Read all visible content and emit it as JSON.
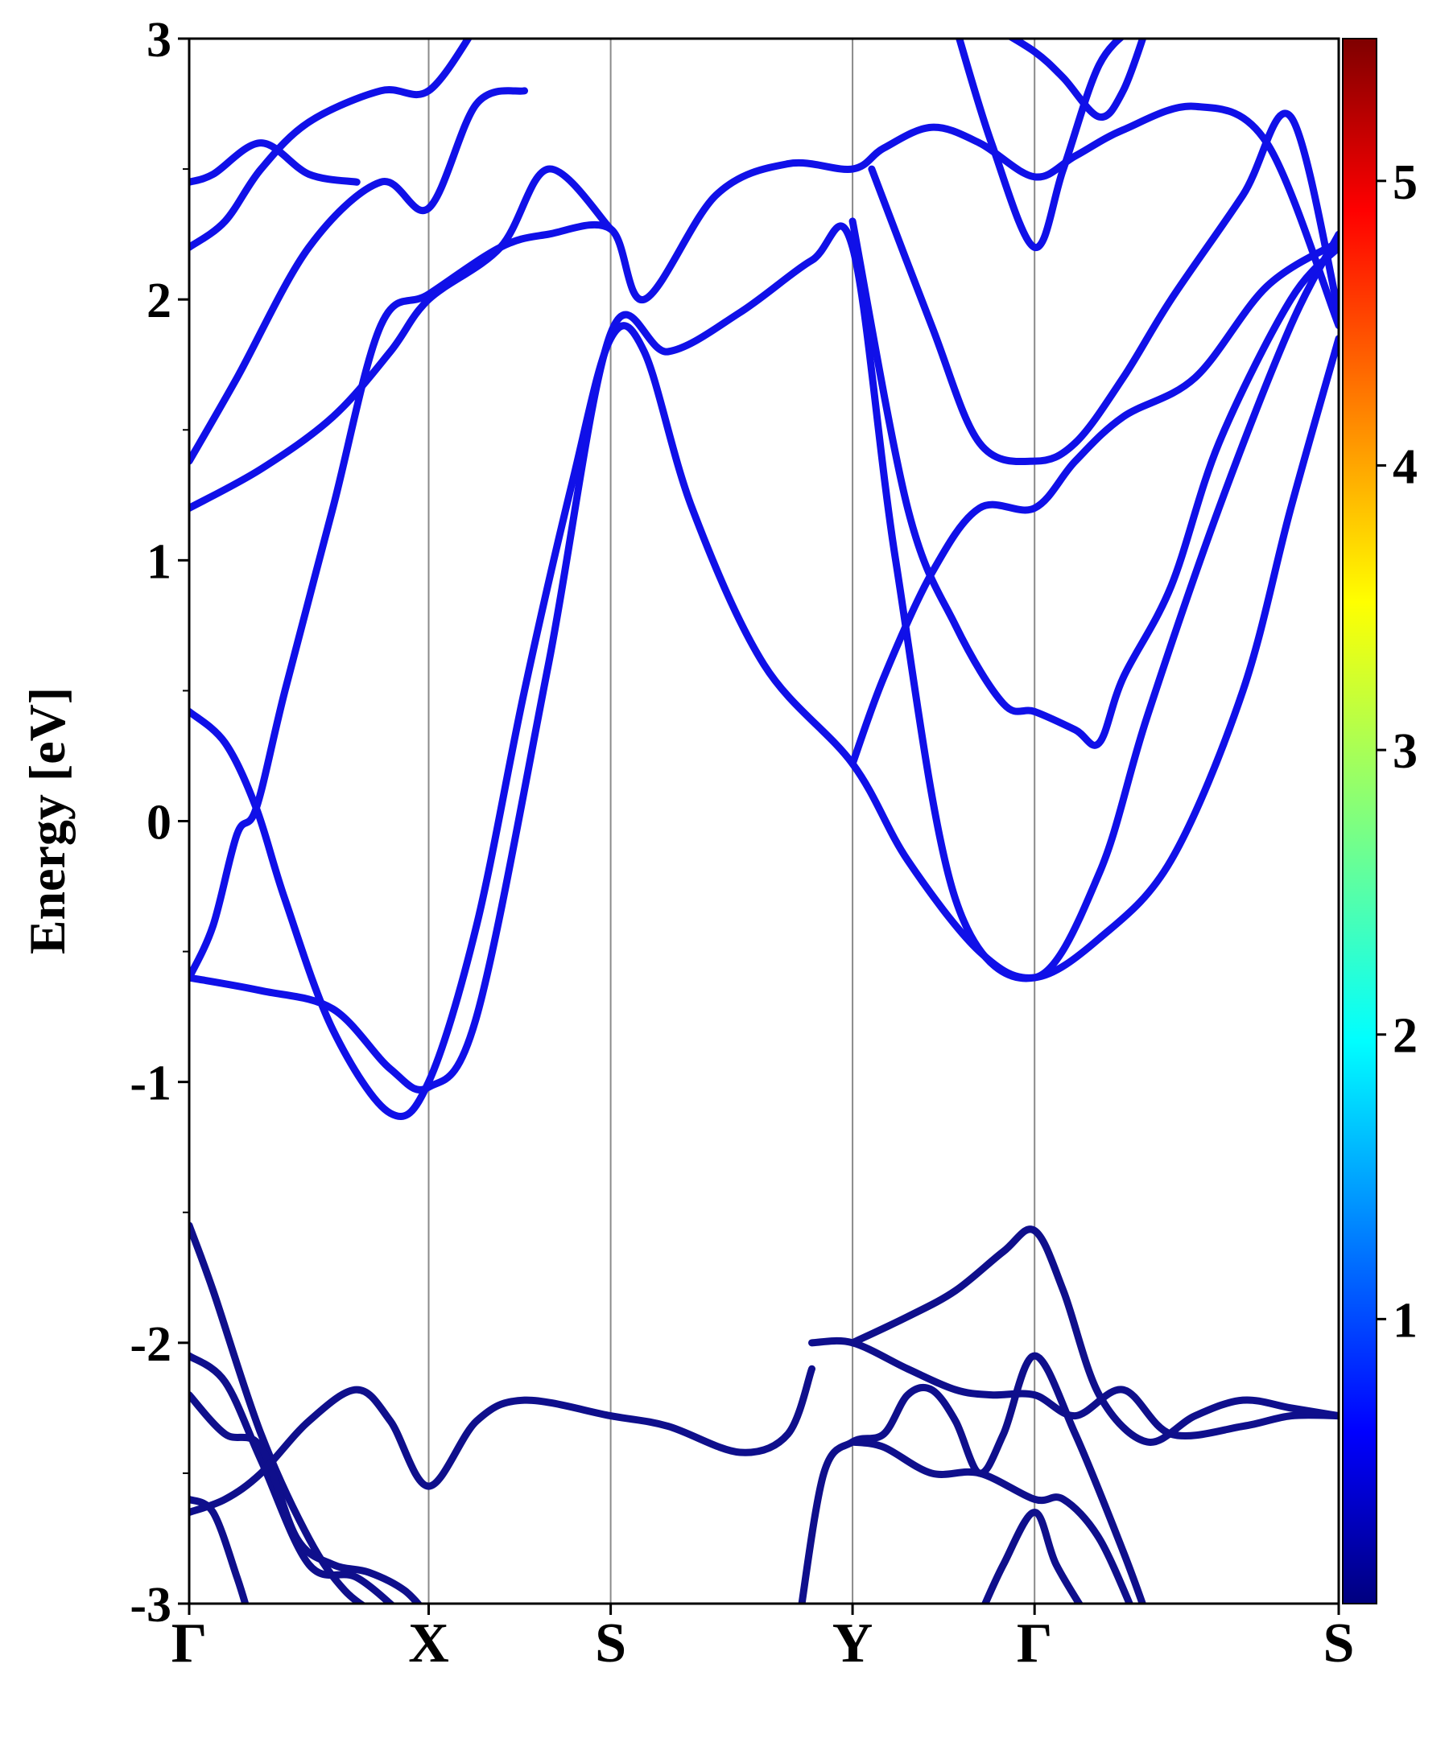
{
  "chart_data": {
    "type": "line",
    "ylabel": "Energy [eV]",
    "ylim": [
      -3,
      3
    ],
    "yticks": [
      "3",
      "2",
      "1",
      "0",
      "-1",
      "-2",
      "-3"
    ],
    "ytick_values": [
      3,
      2,
      1,
      0,
      -1,
      -2,
      -3
    ],
    "xlim": [
      0,
      4.8
    ],
    "xticks": [
      "Γ",
      "X",
      "S",
      "Y",
      "Γ",
      "S"
    ],
    "xtick_values": [
      0,
      1,
      1.76,
      2.77,
      3.53,
      4.8
    ],
    "grid": "vertical lines at high-symmetry points",
    "colorbar": {
      "min": 0,
      "max": 5.5,
      "ticks": [
        "1",
        "2",
        "3",
        "4",
        "5"
      ],
      "tick_values": [
        1,
        2,
        3,
        4,
        5
      ],
      "colormap": "jet"
    },
    "series": [
      {
        "color": "#1010e8",
        "x": [
          0,
          0.1,
          0.2,
          0.28,
          0.4,
          0.6,
          0.8,
          1.0,
          1.3,
          1.5,
          1.76,
          1.9,
          2.2,
          2.5,
          2.77,
          2.9,
          3.1,
          3.3,
          3.53,
          3.7,
          3.9,
          4.2,
          4.5,
          4.8
        ],
        "y": [
          -0.6,
          -0.4,
          -0.05,
          0.05,
          0.5,
          1.2,
          1.9,
          2.02,
          2.2,
          2.25,
          2.27,
          2.0,
          2.4,
          2.52,
          2.5,
          2.58,
          2.66,
          2.6,
          2.47,
          2.55,
          2.65,
          2.74,
          2.6,
          1.9
        ]
      },
      {
        "color": "#1010e8",
        "x": [
          0,
          0.15,
          0.28,
          0.4,
          0.6,
          0.84,
          1.0,
          1.2,
          1.4,
          1.6,
          1.76,
          1.9,
          2.1,
          2.4,
          2.77,
          3.0,
          3.3,
          3.53,
          3.8,
          4.1,
          4.4,
          4.6,
          4.8
        ],
        "y": [
          0.42,
          0.3,
          0.05,
          -0.3,
          -0.8,
          -1.12,
          -1.0,
          -0.4,
          0.5,
          1.3,
          1.85,
          1.8,
          1.2,
          0.6,
          0.22,
          -0.15,
          -0.5,
          -0.6,
          -0.45,
          -0.15,
          0.5,
          1.2,
          1.85
        ]
      },
      {
        "color": "#1010e8",
        "x": [
          0,
          0.3,
          0.6,
          0.84,
          1.0,
          1.2,
          1.5,
          1.76,
          2.0,
          2.3,
          2.6,
          2.77,
          2.95,
          3.2,
          3.53,
          3.8,
          4.0,
          4.3,
          4.6,
          4.8
        ],
        "y": [
          -0.6,
          -0.65,
          -0.72,
          -0.95,
          -1.02,
          -0.75,
          0.6,
          1.87,
          1.8,
          1.95,
          2.15,
          2.2,
          1.0,
          -0.3,
          -0.6,
          -0.2,
          0.4,
          1.2,
          1.9,
          2.25
        ]
      },
      {
        "color": "#1010e8",
        "x": [
          0,
          0.3,
          0.6,
          0.84,
          1.0,
          1.3,
          1.5,
          1.76
        ],
        "y": [
          1.2,
          1.35,
          1.55,
          1.8,
          2.0,
          2.2,
          2.5,
          2.27
        ]
      },
      {
        "color": "#1010e8",
        "x": [
          0,
          0.2,
          0.5,
          0.8,
          1.0,
          1.2,
          1.4
        ],
        "y": [
          1.38,
          1.7,
          2.2,
          2.45,
          2.35,
          2.75,
          2.8
        ]
      },
      {
        "color": "#1010e8",
        "x": [
          0,
          0.15,
          0.3,
          0.5,
          0.8,
          1.0,
          1.2
        ],
        "y": [
          2.2,
          2.3,
          2.5,
          2.68,
          2.8,
          2.8,
          3.05
        ]
      },
      {
        "color": "#1010e8",
        "x": [
          0,
          0.1,
          0.3,
          0.5,
          0.7
        ],
        "y": [
          2.45,
          2.48,
          2.6,
          2.48,
          2.45
        ]
      },
      {
        "color": "#1010e8",
        "x": [
          2.77,
          3.0,
          3.2,
          3.4,
          3.53,
          3.7,
          3.8,
          3.9,
          4.1,
          4.3,
          4.6,
          4.8
        ],
        "y": [
          2.3,
          1.2,
          0.75,
          0.45,
          0.42,
          0.35,
          0.3,
          0.55,
          0.9,
          1.45,
          2.0,
          2.2
        ]
      },
      {
        "color": "#1010e8",
        "x": [
          2.77,
          2.9,
          3.1,
          3.3,
          3.53,
          3.7,
          3.9,
          4.2,
          4.5,
          4.8
        ],
        "y": [
          0.22,
          0.55,
          0.95,
          1.2,
          1.2,
          1.38,
          1.55,
          1.7,
          2.05,
          2.22
        ]
      },
      {
        "color": "#1010e8",
        "x": [
          2.85,
          3.1,
          3.3,
          3.53,
          3.7,
          3.9,
          4.1,
          4.4,
          4.6,
          4.8
        ],
        "y": [
          2.5,
          1.9,
          1.45,
          1.38,
          1.45,
          1.7,
          2.0,
          2.4,
          2.7,
          1.95
        ]
      },
      {
        "color": "#1010e8",
        "x": [
          3.2,
          3.35,
          3.53,
          3.65,
          3.8,
          3.95
        ],
        "y": [
          3.05,
          2.6,
          2.2,
          2.5,
          2.9,
          3.05
        ]
      },
      {
        "color": "#1010e8",
        "x": [
          3.35,
          3.53,
          3.65,
          3.8,
          3.9,
          4.0
        ],
        "y": [
          3.05,
          2.95,
          2.85,
          2.7,
          2.8,
          3.05
        ]
      },
      {
        "color": "#0f0f8c",
        "x": [
          0,
          0.1,
          0.3,
          0.5,
          0.65,
          0.8
        ],
        "y": [
          -1.55,
          -1.8,
          -2.35,
          -2.75,
          -2.95,
          -3.05
        ]
      },
      {
        "color": "#0f0f8c",
        "x": [
          0,
          0.15,
          0.3,
          0.5,
          0.7,
          0.9
        ],
        "y": [
          -2.05,
          -2.15,
          -2.45,
          -2.85,
          -2.9,
          -3.05
        ]
      },
      {
        "color": "#0f0f8c",
        "x": [
          0,
          0.15,
          0.3,
          0.45,
          0.6,
          0.75,
          0.9,
          1.0
        ],
        "y": [
          -2.2,
          -2.35,
          -2.4,
          -2.75,
          -2.85,
          -2.88,
          -2.95,
          -3.05
        ]
      },
      {
        "color": "#0f0f8c",
        "x": [
          0,
          0.15,
          0.3,
          0.5,
          0.7,
          0.84,
          1.0,
          1.2,
          1.4,
          1.76,
          2.0,
          2.3,
          2.5,
          2.6
        ],
        "y": [
          -2.65,
          -2.6,
          -2.5,
          -2.3,
          -2.18,
          -2.3,
          -2.55,
          -2.3,
          -2.22,
          -2.28,
          -2.32,
          -2.42,
          -2.35,
          -2.1
        ]
      },
      {
        "color": "#0f0f8c",
        "x": [
          0,
          0.1,
          0.2,
          0.25
        ],
        "y": [
          -2.6,
          -2.65,
          -2.9,
          -3.05
        ]
      },
      {
        "color": "#0f0f8c",
        "x": [
          2.6,
          2.77,
          3.0,
          3.2,
          3.35,
          3.53,
          3.7,
          3.9,
          4.1,
          4.4,
          4.6,
          4.8
        ],
        "y": [
          -2.0,
          -2.0,
          -2.1,
          -2.18,
          -2.2,
          -2.2,
          -2.28,
          -2.18,
          -2.35,
          -2.32,
          -2.28,
          -2.28
        ]
      },
      {
        "color": "#0f0f8c",
        "x": [
          2.77,
          3.0,
          3.2,
          3.4,
          3.53,
          3.65,
          3.8,
          4.0,
          4.2,
          4.4,
          4.6,
          4.8
        ],
        "y": [
          -2.0,
          -1.9,
          -1.8,
          -1.65,
          -1.57,
          -1.8,
          -2.2,
          -2.38,
          -2.28,
          -2.22,
          -2.25,
          -2.28
        ]
      },
      {
        "color": "#0f0f8c",
        "x": [
          2.55,
          2.65,
          2.77,
          2.9,
          3.0,
          3.1,
          3.2,
          3.3,
          3.4,
          3.53,
          3.7,
          3.9,
          4.0
        ],
        "y": [
          -3.05,
          -2.5,
          -2.38,
          -2.35,
          -2.2,
          -2.18,
          -2.3,
          -2.5,
          -2.35,
          -2.05,
          -2.35,
          -2.8,
          -3.05
        ]
      },
      {
        "color": "#0f0f8c",
        "x": [
          2.77,
          2.9,
          3.1,
          3.3,
          3.53,
          3.65,
          3.8,
          3.95
        ],
        "y": [
          -2.38,
          -2.4,
          -2.5,
          -2.5,
          -2.6,
          -2.6,
          -2.75,
          -3.05
        ]
      },
      {
        "color": "#0f0f8c",
        "x": [
          3.3,
          3.4,
          3.53,
          3.62,
          3.75
        ],
        "y": [
          -3.05,
          -2.85,
          -2.65,
          -2.85,
          -3.05
        ]
      }
    ]
  }
}
